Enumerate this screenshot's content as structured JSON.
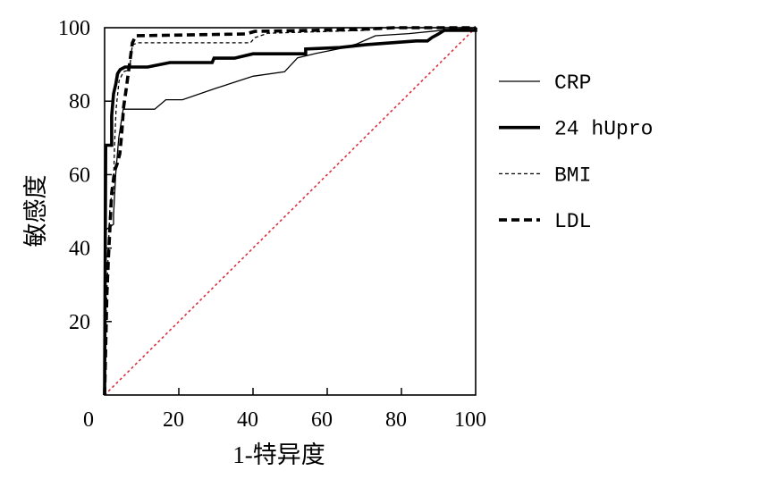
{
  "chart_data": {
    "type": "line",
    "xlabel": "1-特异度",
    "ylabel": "敏感度",
    "xlim": [
      0,
      100
    ],
    "ylim": [
      0,
      100
    ],
    "x_ticks": [
      0,
      20,
      40,
      60,
      80,
      100
    ],
    "y_ticks": [
      20,
      40,
      60,
      80,
      100
    ],
    "grid": false,
    "legend_position": "right",
    "series": [
      {
        "name": "CRP",
        "color": "#000000",
        "weight": "thin",
        "dash": "solid",
        "points": [
          [
            0,
            0
          ],
          [
            0.4,
            45
          ],
          [
            2.4,
            46.5
          ],
          [
            2.4,
            49
          ],
          [
            3,
            60
          ],
          [
            3.8,
            70
          ],
          [
            5,
            77.8
          ],
          [
            13.5,
            77.8
          ],
          [
            16.5,
            80.4
          ],
          [
            21,
            80.4
          ],
          [
            30,
            83.5
          ],
          [
            40,
            86.8
          ],
          [
            48.5,
            88
          ],
          [
            52,
            91.8
          ],
          [
            57,
            93
          ],
          [
            63,
            94.2
          ],
          [
            68,
            95.6
          ],
          [
            73,
            97.8
          ],
          [
            82,
            98.4
          ],
          [
            90,
            99.2
          ],
          [
            100,
            100
          ]
        ]
      },
      {
        "name": "24 hUpro",
        "color": "#000000",
        "weight": "thick",
        "dash": "solid",
        "points": [
          [
            0,
            0
          ],
          [
            0.3,
            68
          ],
          [
            1.9,
            68
          ],
          [
            1.9,
            76
          ],
          [
            2.4,
            82
          ],
          [
            3,
            84.5
          ],
          [
            3.5,
            87.5
          ],
          [
            4.2,
            88.6
          ],
          [
            5.5,
            89.3
          ],
          [
            11.6,
            89.3
          ],
          [
            17.6,
            90.5
          ],
          [
            29,
            90.5
          ],
          [
            29.5,
            91.7
          ],
          [
            35,
            91.7
          ],
          [
            40,
            92.9
          ],
          [
            54.2,
            92.9
          ],
          [
            54.2,
            94.2
          ],
          [
            63.4,
            94.6
          ],
          [
            70.6,
            95.4
          ],
          [
            84,
            96.4
          ],
          [
            87,
            96.4
          ],
          [
            88.2,
            97.3
          ],
          [
            90,
            98.3
          ],
          [
            91.6,
            99.3
          ],
          [
            100,
            99.3
          ],
          [
            100,
            100
          ]
        ]
      },
      {
        "name": "BMI",
        "color": "#000000",
        "weight": "thin",
        "dash": "dashed",
        "points": [
          [
            0,
            0
          ],
          [
            0.5,
            24.8
          ],
          [
            1,
            39.4
          ],
          [
            1.5,
            52.8
          ],
          [
            2.4,
            55
          ],
          [
            2.4,
            57.7
          ],
          [
            2.7,
            68.6
          ],
          [
            3.1,
            78
          ],
          [
            3.9,
            85.6
          ],
          [
            5.1,
            88
          ],
          [
            6.7,
            88.6
          ],
          [
            7.5,
            95.4
          ],
          [
            9.2,
            95.9
          ],
          [
            39.3,
            95.9
          ],
          [
            40.5,
            97.3
          ],
          [
            44,
            98.5
          ],
          [
            70.6,
            99.3
          ],
          [
            75.4,
            100
          ],
          [
            100,
            100
          ]
        ]
      },
      {
        "name": "LDL",
        "color": "#000000",
        "weight": "thick",
        "dash": "dashed",
        "points": [
          [
            0,
            0
          ],
          [
            0.6,
            27
          ],
          [
            1,
            37
          ],
          [
            1.5,
            46.7
          ],
          [
            1.9,
            55
          ],
          [
            2.7,
            61
          ],
          [
            3.4,
            63
          ],
          [
            4.1,
            65.7
          ],
          [
            4.6,
            71
          ],
          [
            5.1,
            78.3
          ],
          [
            5.8,
            83.2
          ],
          [
            6.3,
            86.9
          ],
          [
            7.5,
            95.9
          ],
          [
            8.4,
            97.8
          ],
          [
            38,
            98.3
          ],
          [
            40.5,
            99
          ],
          [
            68,
            99.5
          ],
          [
            78,
            100
          ],
          [
            100,
            100
          ]
        ]
      }
    ],
    "reference_line": {
      "color": "#d9303e",
      "dash": "dotted",
      "points": [
        [
          0,
          0
        ],
        [
          100,
          100
        ]
      ]
    }
  }
}
